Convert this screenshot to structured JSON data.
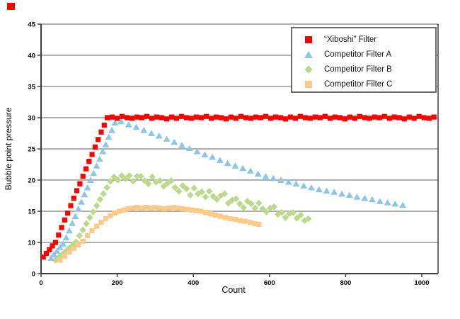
{
  "artifacts": {
    "top_left_red_mark_color": "#ff0000"
  },
  "chart_data": {
    "type": "scatter",
    "title": "",
    "xlabel": "Count",
    "ylabel": "Bubble point pressure",
    "x_ticks": [
      0,
      200,
      400,
      600,
      800,
      1000
    ],
    "xlim": [
      0,
      1043
    ],
    "y_tick_values": [
      0,
      10,
      15,
      20,
      25,
      30,
      35,
      40,
      45
    ],
    "y_axis_note": "tick labels equally spaced; 0-10 interval occupies same height as each 5-unit interval",
    "grid": true,
    "grid_color": "#7f7f7f",
    "axis_color": "#3f3f3f",
    "legend_position": "top-right",
    "series": [
      {
        "name": "“Xiboshi” Filter",
        "marker": "square",
        "color": "#ff0000",
        "points": [
          [
            6,
            5.3
          ],
          [
            14,
            6.5
          ],
          [
            22,
            7.7
          ],
          [
            30,
            8.9
          ],
          [
            38,
            10
          ],
          [
            46,
            11.2
          ],
          [
            54,
            12.4
          ],
          [
            62,
            13.6
          ],
          [
            70,
            14.7
          ],
          [
            78,
            15.9
          ],
          [
            86,
            17.1
          ],
          [
            94,
            18.3
          ],
          [
            102,
            19.4
          ],
          [
            110,
            20.6
          ],
          [
            118,
            21.8
          ],
          [
            126,
            23
          ],
          [
            134,
            24.1
          ],
          [
            142,
            25.3
          ],
          [
            150,
            26.5
          ],
          [
            158,
            27.7
          ],
          [
            166,
            28.8
          ],
          [
            174,
            30
          ],
          [
            187,
            30.1
          ],
          [
            200,
            29.9
          ],
          [
            213,
            30.2
          ],
          [
            226,
            30
          ],
          [
            239,
            29.9
          ],
          [
            252,
            30.1
          ],
          [
            265,
            30
          ],
          [
            278,
            30.2
          ],
          [
            291,
            29.9
          ],
          [
            304,
            30.1
          ],
          [
            317,
            30
          ],
          [
            330,
            29.8
          ],
          [
            343,
            30.1
          ],
          [
            356,
            29.9
          ],
          [
            369,
            30.2
          ],
          [
            382,
            30
          ],
          [
            395,
            29.9
          ],
          [
            408,
            30.1
          ],
          [
            421,
            30
          ],
          [
            434,
            30.2
          ],
          [
            447,
            29.9
          ],
          [
            460,
            30.1
          ],
          [
            473,
            30
          ],
          [
            486,
            29.8
          ],
          [
            499,
            30.1
          ],
          [
            512,
            29.9
          ],
          [
            525,
            30.2
          ],
          [
            538,
            30
          ],
          [
            551,
            29.9
          ],
          [
            564,
            30.1
          ],
          [
            577,
            30
          ],
          [
            590,
            30.2
          ],
          [
            603,
            29.9
          ],
          [
            616,
            30.1
          ],
          [
            629,
            30
          ],
          [
            642,
            29.8
          ],
          [
            655,
            30.1
          ],
          [
            668,
            29.9
          ],
          [
            681,
            30.2
          ],
          [
            694,
            30
          ],
          [
            707,
            29.9
          ],
          [
            720,
            30.1
          ],
          [
            733,
            30
          ],
          [
            746,
            30.2
          ],
          [
            759,
            29.9
          ],
          [
            772,
            30.1
          ],
          [
            785,
            30
          ],
          [
            798,
            29.8
          ],
          [
            811,
            30.1
          ],
          [
            824,
            29.9
          ],
          [
            837,
            30.2
          ],
          [
            850,
            30
          ],
          [
            863,
            29.9
          ],
          [
            876,
            30.1
          ],
          [
            889,
            30
          ],
          [
            902,
            30.2
          ],
          [
            915,
            29.9
          ],
          [
            928,
            30.1
          ],
          [
            941,
            30
          ],
          [
            954,
            29.8
          ],
          [
            967,
            30.1
          ],
          [
            980,
            29.9
          ],
          [
            993,
            30.2
          ],
          [
            1006,
            30
          ],
          [
            1019,
            29.9
          ],
          [
            1032,
            30.1
          ]
        ]
      },
      {
        "name": "Competitor Filter A",
        "marker": "triangle",
        "color": "#8cc6e9",
        "points": [
          [
            26,
            5
          ],
          [
            34,
            6.2
          ],
          [
            42,
            7.3
          ],
          [
            50,
            8.5
          ],
          [
            58,
            9.6
          ],
          [
            66,
            10.8
          ],
          [
            74,
            11.9
          ],
          [
            82,
            13.1
          ],
          [
            90,
            14.2
          ],
          [
            98,
            15.4
          ],
          [
            106,
            16.5
          ],
          [
            114,
            17.7
          ],
          [
            122,
            18.8
          ],
          [
            130,
            20
          ],
          [
            138,
            21.1
          ],
          [
            146,
            22.3
          ],
          [
            154,
            23.4
          ],
          [
            162,
            24.6
          ],
          [
            170,
            25.7
          ],
          [
            178,
            26.9
          ],
          [
            186,
            28
          ],
          [
            194,
            29.2
          ],
          [
            210,
            29.4
          ],
          [
            230,
            28.9
          ],
          [
            250,
            28.5
          ],
          [
            270,
            28
          ],
          [
            290,
            27.5
          ],
          [
            310,
            27.1
          ],
          [
            330,
            26.6
          ],
          [
            350,
            26.1
          ],
          [
            370,
            25.6
          ],
          [
            390,
            25.1
          ],
          [
            410,
            24.6
          ],
          [
            430,
            24.1
          ],
          [
            450,
            23.7
          ],
          [
            470,
            23.2
          ],
          [
            490,
            22.7
          ],
          [
            510,
            22.3
          ],
          [
            530,
            21.9
          ],
          [
            550,
            21.5
          ],
          [
            570,
            21
          ],
          [
            590,
            20.6
          ],
          [
            610,
            20.3
          ],
          [
            630,
            20
          ],
          [
            650,
            19.7
          ],
          [
            670,
            19.4
          ],
          [
            690,
            19.1
          ],
          [
            710,
            18.8
          ],
          [
            730,
            18.5
          ],
          [
            750,
            18.3
          ],
          [
            770,
            18.1
          ],
          [
            790,
            17.8
          ],
          [
            810,
            17.6
          ],
          [
            830,
            17.3
          ],
          [
            850,
            17.1
          ],
          [
            870,
            16.9
          ],
          [
            890,
            16.6
          ],
          [
            910,
            16.4
          ],
          [
            930,
            16.2
          ],
          [
            950,
            16
          ]
        ]
      },
      {
        "name": "Competitor Filter B",
        "marker": "diamond",
        "color": "#bcd98b",
        "points": [
          [
            38,
            4.3
          ],
          [
            47,
            5.3
          ],
          [
            56,
            6.2
          ],
          [
            65,
            7.2
          ],
          [
            74,
            8.2
          ],
          [
            83,
            9.1
          ],
          [
            92,
            10.1
          ],
          [
            101,
            11.1
          ],
          [
            110,
            12
          ],
          [
            119,
            13
          ],
          [
            128,
            14
          ],
          [
            137,
            14.9
          ],
          [
            146,
            15.9
          ],
          [
            155,
            16.9
          ],
          [
            164,
            17.8
          ],
          [
            173,
            18.8
          ],
          [
            182,
            19.8
          ],
          [
            192,
            20.5
          ],
          [
            202,
            20
          ],
          [
            212,
            20.7
          ],
          [
            222,
            20.2
          ],
          [
            232,
            20.7
          ],
          [
            242,
            19.8
          ],
          [
            252,
            20.6
          ],
          [
            262,
            20.6
          ],
          [
            272,
            19.9
          ],
          [
            282,
            19.4
          ],
          [
            292,
            20.5
          ],
          [
            302,
            19.7
          ],
          [
            312,
            19.9
          ],
          [
            322,
            19
          ],
          [
            332,
            19.5
          ],
          [
            342,
            19.9
          ],
          [
            352,
            18.8
          ],
          [
            362,
            18.2
          ],
          [
            372,
            19.1
          ],
          [
            382,
            18.6
          ],
          [
            392,
            17.6
          ],
          [
            402,
            18.7
          ],
          [
            412,
            17.8
          ],
          [
            422,
            18.1
          ],
          [
            432,
            17.3
          ],
          [
            442,
            18.2
          ],
          [
            452,
            17.4
          ],
          [
            462,
            16.9
          ],
          [
            472,
            17.5
          ],
          [
            482,
            17.8
          ],
          [
            492,
            16.3
          ],
          [
            502,
            16.8
          ],
          [
            512,
            17
          ],
          [
            522,
            16.2
          ],
          [
            532,
            15.6
          ],
          [
            542,
            16.6
          ],
          [
            552,
            16.2
          ],
          [
            562,
            15.5
          ],
          [
            572,
            16.3
          ],
          [
            582,
            15.4
          ],
          [
            592,
            14.9
          ],
          [
            602,
            15.5
          ],
          [
            612,
            15.7
          ],
          [
            622,
            14.5
          ],
          [
            632,
            14.8
          ],
          [
            642,
            14
          ],
          [
            652,
            14.6
          ],
          [
            662,
            14.8
          ],
          [
            672,
            13.9
          ],
          [
            682,
            14.4
          ],
          [
            692,
            13.5
          ],
          [
            702,
            13.8
          ]
        ]
      },
      {
        "name": "Competitor Filter C",
        "marker": "square",
        "color": "#fbca86",
        "points": [
          [
            50,
            4.3
          ],
          [
            62,
            5.6
          ],
          [
            74,
            6.9
          ],
          [
            86,
            8.1
          ],
          [
            98,
            9.2
          ],
          [
            110,
            10.2
          ],
          [
            122,
            11.1
          ],
          [
            134,
            11.9
          ],
          [
            146,
            12.6
          ],
          [
            158,
            13.2
          ],
          [
            170,
            13.8
          ],
          [
            182,
            14.3
          ],
          [
            194,
            14.7
          ],
          [
            206,
            15
          ],
          [
            218,
            15.2
          ],
          [
            228,
            15.4
          ],
          [
            240,
            15.5
          ],
          [
            252,
            15.6
          ],
          [
            264,
            15.5
          ],
          [
            276,
            15.6
          ],
          [
            288,
            15.5
          ],
          [
            300,
            15.6
          ],
          [
            312,
            15.5
          ],
          [
            324,
            15.4
          ],
          [
            336,
            15.5
          ],
          [
            348,
            15.6
          ],
          [
            360,
            15.5
          ],
          [
            372,
            15.4
          ],
          [
            384,
            15.3
          ],
          [
            396,
            15.2
          ],
          [
            408,
            15.1
          ],
          [
            420,
            15
          ],
          [
            432,
            14.8
          ],
          [
            445,
            14.6
          ],
          [
            458,
            14.4
          ],
          [
            471,
            14.2
          ],
          [
            484,
            14
          ],
          [
            497,
            13.8
          ],
          [
            510,
            13.7
          ],
          [
            523,
            13.5
          ],
          [
            536,
            13.4
          ],
          [
            549,
            13.2
          ],
          [
            562,
            13
          ],
          [
            572,
            12.9
          ]
        ]
      }
    ]
  }
}
